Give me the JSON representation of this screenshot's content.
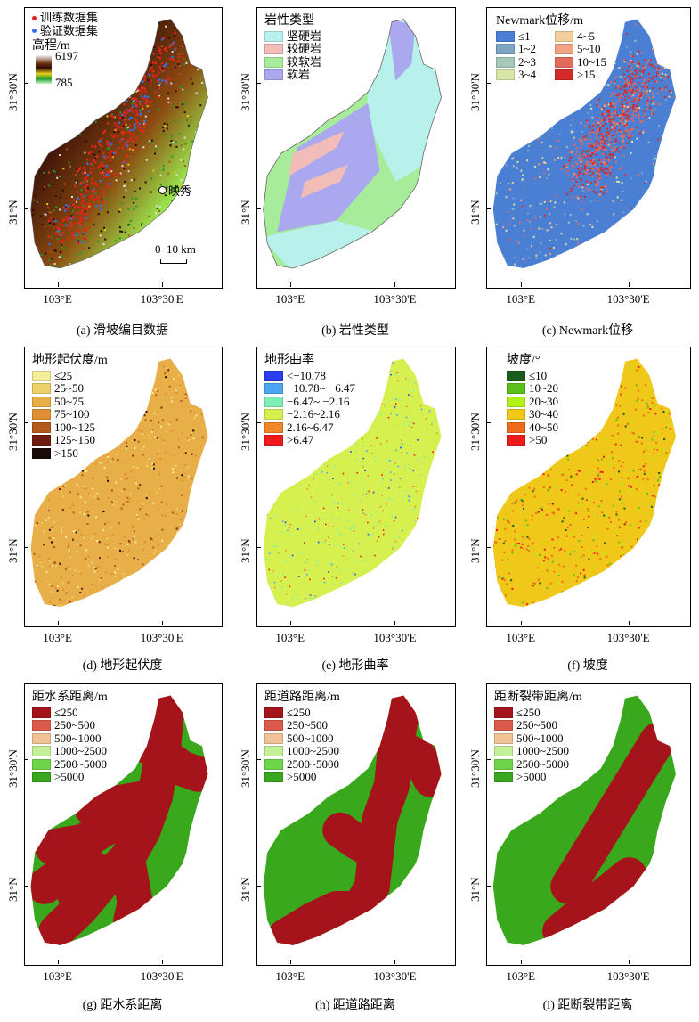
{
  "axes": {
    "x_ticks": [
      "103°E",
      "103°30'E"
    ],
    "y_ticks": [
      "31°30'N",
      "31°N"
    ]
  },
  "panels": [
    {
      "id": "a",
      "caption": "(a) 滑坡编目数据",
      "legend": {
        "items": [
          {
            "label": "训练数据集",
            "color": "#e8231d"
          },
          {
            "label": "验证数据集",
            "color": "#3a6ee8"
          }
        ],
        "elevation_title": "高程/m",
        "elevation_max": "6197",
        "elevation_min": "785",
        "place_label": "映秀",
        "scale_label": "0  10 km"
      }
    },
    {
      "id": "b",
      "caption": "(b) 岩性类型",
      "legend": {
        "title": "岩性类型",
        "items": [
          {
            "label": "坚硬岩",
            "color": "#b8f0ec"
          },
          {
            "label": "较硬岩",
            "color": "#f2bcb8"
          },
          {
            "label": "较软岩",
            "color": "#a6ec9a"
          },
          {
            "label": "软岩",
            "color": "#aaa8ee"
          }
        ]
      }
    },
    {
      "id": "c",
      "caption": "(c) Newmark位移",
      "legend": {
        "title": "Newmark位移/m",
        "items": [
          {
            "label": "≤1",
            "color": "#4a7fd4"
          },
          {
            "label": "4~5",
            "color": "#f2cf9a"
          },
          {
            "label": "1~2",
            "color": "#7ca6c4"
          },
          {
            "label": "5~10",
            "color": "#f0a282"
          },
          {
            "label": "2~3",
            "color": "#a6c8b8"
          },
          {
            "label": "10~15",
            "color": "#e46a5e"
          },
          {
            "label": "3~4",
            "color": "#d8e6a8"
          },
          {
            "label": ">15",
            "color": "#d42a2a"
          }
        ]
      }
    },
    {
      "id": "d",
      "caption": "(d) 地形起伏度",
      "legend": {
        "title": "地形起伏度/m",
        "items": [
          {
            "label": "≤25",
            "color": "#f4ee9a"
          },
          {
            "label": "25~50",
            "color": "#ecd068"
          },
          {
            "label": "50~75",
            "color": "#e8ae48"
          },
          {
            "label": "75~100",
            "color": "#e08e34"
          },
          {
            "label": "100~125",
            "color": "#b45a1c"
          },
          {
            "label": "125~150",
            "color": "#701c10"
          },
          {
            "label": ">150",
            "color": "#1a0a08"
          }
        ]
      }
    },
    {
      "id": "e",
      "caption": "(e) 地形曲率",
      "legend": {
        "title": "地形曲率",
        "items": [
          {
            "label": "<−10.78",
            "color": "#2a3ef0"
          },
          {
            "label": "−10.78~ −6.47",
            "color": "#4aa6f0"
          },
          {
            "label": "−6.47~ −2.16",
            "color": "#7cf0b4"
          },
          {
            "label": "−2.16~2.16",
            "color": "#d6f050"
          },
          {
            "label": "2.16~6.47",
            "color": "#f0882a"
          },
          {
            "label": ">6.47",
            "color": "#f01a1a"
          }
        ]
      }
    },
    {
      "id": "f",
      "caption": "(f) 坡度",
      "legend": {
        "title": "坡度/°",
        "items": [
          {
            "label": "≤10",
            "color": "#1a5c1a"
          },
          {
            "label": "10~20",
            "color": "#5cc01a"
          },
          {
            "label": "20~30",
            "color": "#b4f01a"
          },
          {
            "label": "30~40",
            "color": "#f0c81a"
          },
          {
            "label": "40~50",
            "color": "#f06a1a"
          },
          {
            "label": ">50",
            "color": "#f01a1a"
          }
        ]
      }
    },
    {
      "id": "g",
      "caption": "(g) 距水系距离",
      "legend": {
        "title": "距水系距离/m",
        "items": [
          {
            "label": "≤250",
            "color": "#a4141a"
          },
          {
            "label": "250~500",
            "color": "#dc5a4c"
          },
          {
            "label": "500~1000",
            "color": "#f0c294"
          },
          {
            "label": "1000~2500",
            "color": "#c4f09a"
          },
          {
            "label": "2500~5000",
            "color": "#6ed44a"
          },
          {
            "label": ">5000",
            "color": "#3aa81c"
          }
        ]
      }
    },
    {
      "id": "h",
      "caption": "(h) 距道路距离",
      "legend": {
        "title": "距道路距离/m",
        "items": [
          {
            "label": "≤250",
            "color": "#a4141a"
          },
          {
            "label": "250~500",
            "color": "#dc5a4c"
          },
          {
            "label": "500~1000",
            "color": "#f0c294"
          },
          {
            "label": "1000~2500",
            "color": "#c4f09a"
          },
          {
            "label": "2500~5000",
            "color": "#6ed44a"
          },
          {
            "label": ">5000",
            "color": "#3aa81c"
          }
        ]
      }
    },
    {
      "id": "i",
      "caption": "(i) 距断裂带距离",
      "legend": {
        "title": "距断裂带距离/m",
        "items": [
          {
            "label": "≤250",
            "color": "#a4141a"
          },
          {
            "label": "250~500",
            "color": "#dc5a4c"
          },
          {
            "label": "500~1000",
            "color": "#f0c294"
          },
          {
            "label": "1000~2500",
            "color": "#c4f09a"
          },
          {
            "label": "2500~5000",
            "color": "#6ed44a"
          },
          {
            "label": ">5000",
            "color": "#3aa81c"
          }
        ]
      }
    }
  ]
}
